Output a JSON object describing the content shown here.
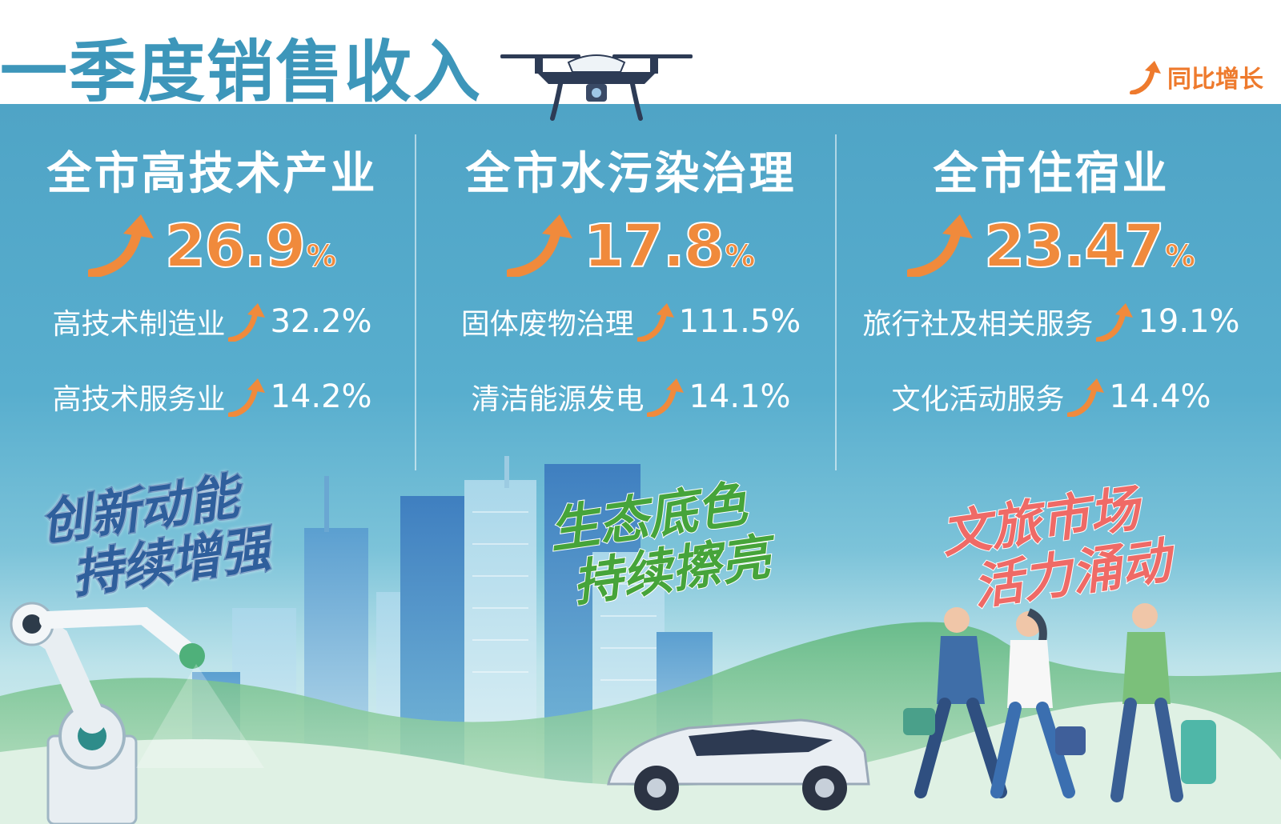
{
  "title": "一季度销售收入",
  "legend": {
    "label": "同比增长",
    "icon": "orange-up-arrow-icon"
  },
  "columns": [
    {
      "title": "全市高技术产业",
      "value": "26.9",
      "unit": "%",
      "items": [
        {
          "label": "高技术制造业",
          "value": "32.2%"
        },
        {
          "label": "高技术服务业",
          "value": "14.2%"
        }
      ],
      "slogan": [
        "创新动能",
        "持续增强"
      ]
    },
    {
      "title": "全市水污染治理",
      "value": "17.8",
      "unit": "%",
      "items": [
        {
          "label": "固体废物治理",
          "value": "111.5%"
        },
        {
          "label": "清洁能源发电",
          "value": "14.1%"
        }
      ],
      "slogan": [
        "生态底色",
        "持续擦亮"
      ]
    },
    {
      "title": "全市住宿业",
      "value": "23.47",
      "unit": "%",
      "items": [
        {
          "label": "旅行社及相关服务",
          "value": "19.1%"
        },
        {
          "label": "文化活动服务",
          "value": "14.4%"
        }
      ],
      "slogan": [
        "文旅市场",
        "活力涌动"
      ]
    }
  ],
  "colors": {
    "title": "#3d96ba",
    "accent_orange": "#f08a3c",
    "panel_blue": "#58aece",
    "slogan_blue": "#2f5f9c",
    "slogan_green": "#46a43a",
    "slogan_red": "#ef6a66"
  },
  "illustrations": [
    "drone-icon",
    "robot-arm-icon",
    "city-skyline-icon",
    "car-icon",
    "travelers-icon",
    "hills-icon"
  ]
}
